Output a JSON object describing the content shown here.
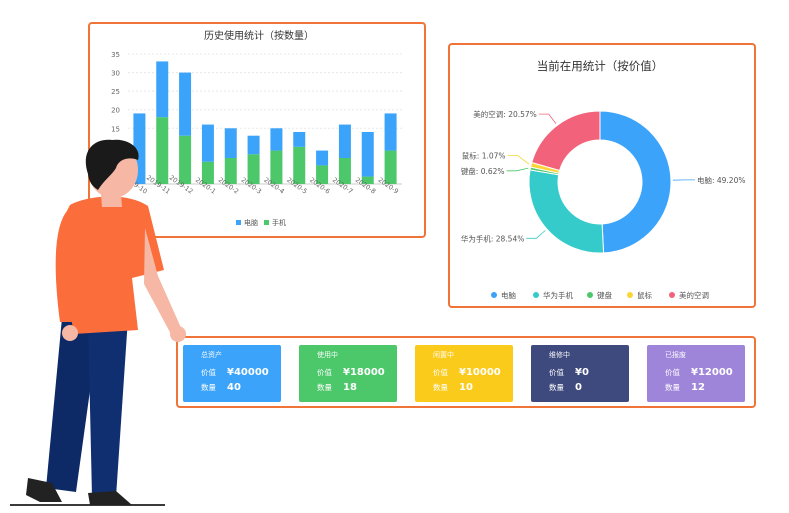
{
  "chart_data": [
    {
      "type": "bar",
      "stacked": true,
      "title": "历史使用统计（按数量）",
      "categories": [
        "2019-10",
        "2019-11",
        "2019-12",
        "2020-1",
        "2020-2",
        "2020-3",
        "2020-4",
        "2020-5",
        "2020-6",
        "2020-7",
        "2020-8",
        "2020-9"
      ],
      "series": [
        {
          "name": "电脑",
          "color": "#3ba3f9",
          "values": [
            19,
            15,
            17,
            10,
            8,
            5,
            6,
            4,
            4,
            9,
            12,
            10
          ]
        },
        {
          "name": "手机",
          "color": "#4cc76a",
          "values": [
            0,
            18,
            13,
            6,
            7,
            8,
            9,
            10,
            5,
            7,
            2,
            9
          ]
        }
      ],
      "ylim": [
        0,
        35
      ],
      "yticks": [
        15,
        20,
        25,
        30,
        35
      ],
      "grid": true,
      "legend": "bottom"
    },
    {
      "type": "pie",
      "donut": true,
      "title": "当前在用统计（按价值）",
      "slices": [
        {
          "name": "电脑",
          "value": 49.2,
          "label": "电脑: 49.20%",
          "color": "#3ba3f9"
        },
        {
          "name": "华为手机",
          "value": 28.54,
          "label": "华为手机: 28.54%",
          "color": "#36cbcb"
        },
        {
          "name": "键盘",
          "value": 0.62,
          "label": "键盘: 0.62%",
          "color": "#4cc76a"
        },
        {
          "name": "鼠标",
          "value": 1.07,
          "label": "鼠标: 1.07%",
          "color": "#fbd437"
        },
        {
          "name": "美的空调",
          "value": 20.57,
          "label": "美的空调: 20.57%",
          "color": "#f2637b"
        }
      ],
      "legend": "bottom"
    }
  ],
  "cards": [
    {
      "title": "总资产",
      "price_label": "价值",
      "price": "¥40000",
      "count_label": "数量",
      "count": "40",
      "color": "#3ba3f9"
    },
    {
      "title": "使用中",
      "price_label": "价值",
      "price": "¥18000",
      "count_label": "数量",
      "count": "18",
      "color": "#4cc76a"
    },
    {
      "title": "闲置中",
      "price_label": "价值",
      "price": "¥10000",
      "count_label": "数量",
      "count": "10",
      "color": "#fbcb1c"
    },
    {
      "title": "维修中",
      "price_label": "价值",
      "price": "¥0",
      "count_label": "数量",
      "count": "0",
      "color": "#3e4a7e"
    },
    {
      "title": "已报废",
      "price_label": "价值",
      "price": "¥12000",
      "count_label": "数量",
      "count": "12",
      "color": "#9f85d9"
    }
  ]
}
